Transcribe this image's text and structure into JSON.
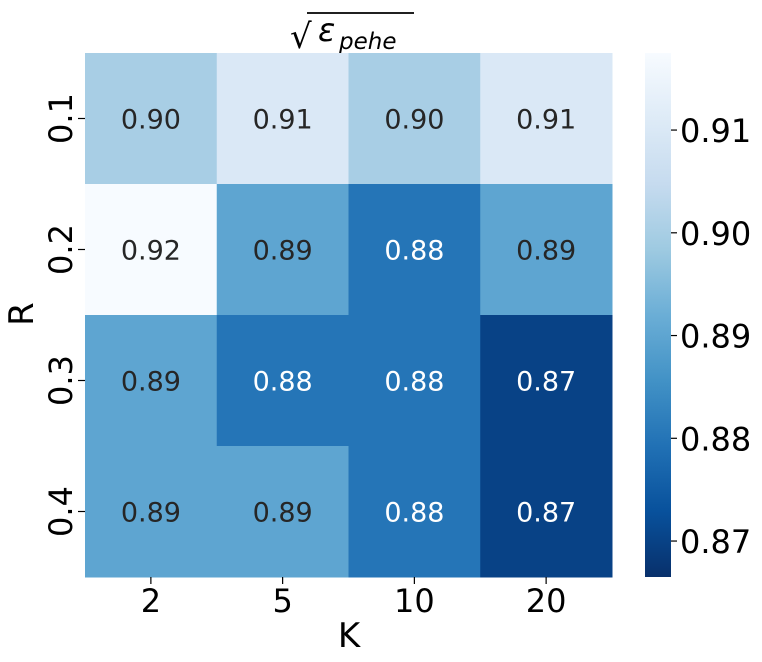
{
  "chart_data": {
    "type": "heatmap",
    "title": "√ε_pehe",
    "title_parts": {
      "radical": "√",
      "symbol": "ε",
      "subscript": "pehe"
    },
    "xlabel": "K",
    "ylabel": "R",
    "x_categories": [
      "2",
      "5",
      "10",
      "20"
    ],
    "y_categories": [
      "0.1",
      "0.2",
      "0.3",
      "0.4"
    ],
    "values": [
      [
        0.9,
        0.91,
        0.9,
        0.91
      ],
      [
        0.92,
        0.89,
        0.88,
        0.89
      ],
      [
        0.89,
        0.88,
        0.88,
        0.87
      ],
      [
        0.89,
        0.89,
        0.88,
        0.87
      ]
    ],
    "value_labels": [
      [
        "0.90",
        "0.91",
        "0.90",
        "0.91"
      ],
      [
        "0.92",
        "0.89",
        "0.88",
        "0.89"
      ],
      [
        "0.89",
        "0.88",
        "0.88",
        "0.87"
      ],
      [
        "0.89",
        "0.89",
        "0.88",
        "0.87"
      ]
    ],
    "colorscale": "Blues_r",
    "colorbar": {
      "range": [
        0.8665,
        0.9175
      ],
      "ticks": [
        "0.87",
        "0.88",
        "0.89",
        "0.90",
        "0.91"
      ],
      "tick_values": [
        0.87,
        0.88,
        0.89,
        0.9,
        0.91
      ]
    },
    "grid": false,
    "legend": "colorbar-right"
  }
}
